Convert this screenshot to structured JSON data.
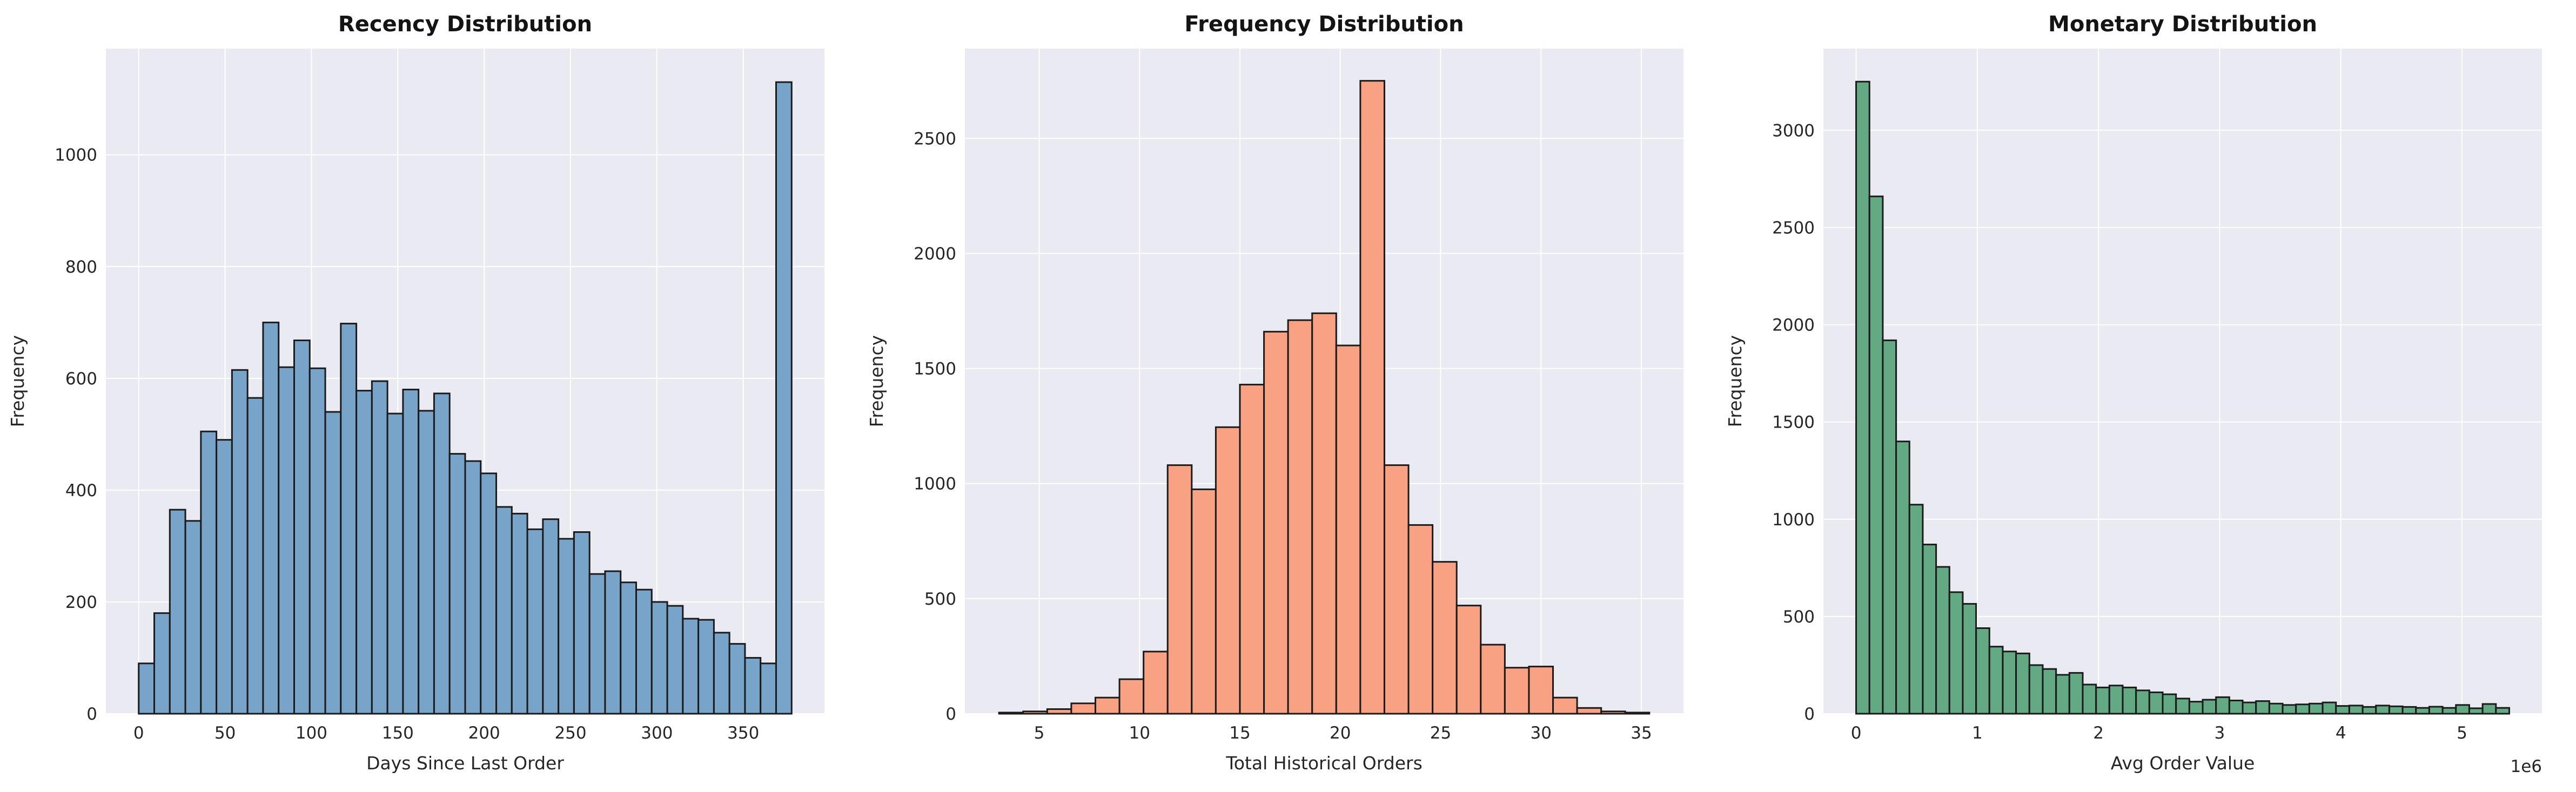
{
  "figure": {
    "background": "#ffffff",
    "axes_background": "#eaeaf2",
    "grid_color": "#ffffff",
    "tick_color": "#262626",
    "title_color": "#141414",
    "bar_edge_color": "#1b1b1b"
  },
  "chart_data": [
    {
      "type": "bar",
      "variant": "histogram",
      "title": "Recency Distribution",
      "xlabel": "Days Since Last Order",
      "ylabel": "Frequency",
      "bar_color": "#79a4ca",
      "bin_start": 0,
      "bin_width": 9,
      "values": [
        90,
        180,
        365,
        345,
        505,
        490,
        615,
        565,
        700,
        620,
        668,
        618,
        540,
        698,
        578,
        595,
        537,
        580,
        542,
        573,
        465,
        452,
        430,
        370,
        358,
        330,
        348,
        313,
        325,
        250,
        255,
        235,
        222,
        200,
        193,
        170,
        168,
        145,
        125,
        100,
        90,
        1130
      ],
      "x_ticks": [
        0,
        50,
        100,
        150,
        200,
        250,
        300,
        350
      ],
      "x_tick_labels": [
        "0",
        "50",
        "100",
        "150",
        "200",
        "250",
        "300",
        "350"
      ],
      "y_ticks": [
        0,
        200,
        400,
        600,
        800,
        1000
      ],
      "y_tick_labels": [
        "0",
        "200",
        "400",
        "600",
        "800",
        "1000"
      ],
      "xlim": [
        -19,
        397
      ],
      "ylim": [
        0,
        1190
      ],
      "grid": true,
      "legend_position": "none",
      "offset_text": ""
    },
    {
      "type": "bar",
      "variant": "histogram",
      "title": "Frequency Distribution",
      "xlabel": "Total Historical Orders",
      "ylabel": "Frequency",
      "bar_color": "#f9a183",
      "bin_start": 3.0,
      "bin_width": 1.2,
      "values": [
        5,
        10,
        20,
        45,
        70,
        150,
        270,
        1080,
        975,
        1245,
        1430,
        1660,
        1710,
        1740,
        1600,
        2750,
        1080,
        820,
        660,
        470,
        300,
        200,
        205,
        70,
        25,
        10,
        5
      ],
      "x_ticks": [
        5,
        10,
        15,
        20,
        25,
        30,
        35
      ],
      "x_tick_labels": [
        "5",
        "10",
        "15",
        "20",
        "25",
        "30",
        "35"
      ],
      "y_ticks": [
        0,
        500,
        1000,
        1500,
        2000,
        2500
      ],
      "y_tick_labels": [
        "0",
        "500",
        "1000",
        "1500",
        "2000",
        "2500"
      ],
      "xlim": [
        1.3,
        37.1
      ],
      "ylim": [
        0,
        2890
      ],
      "grid": true,
      "legend_position": "none",
      "offset_text": ""
    },
    {
      "type": "bar",
      "variant": "histogram",
      "title": "Monetary Distribution",
      "xlabel": "Avg Order Value",
      "ylabel": "Frequency",
      "bar_color": "#63a984",
      "bin_start": 0,
      "bin_width": 110000,
      "values": [
        3250,
        2660,
        1920,
        1400,
        1075,
        870,
        755,
        625,
        565,
        440,
        345,
        320,
        310,
        250,
        230,
        200,
        210,
        150,
        135,
        145,
        135,
        120,
        110,
        100,
        78,
        62,
        72,
        85,
        68,
        58,
        65,
        52,
        45,
        48,
        52,
        58,
        40,
        42,
        35,
        42,
        38,
        35,
        30,
        36,
        30,
        45,
        28,
        50,
        30
      ],
      "x_ticks": [
        0,
        1000000,
        2000000,
        3000000,
        4000000,
        5000000
      ],
      "x_tick_labels": [
        "0",
        "1",
        "2",
        "3",
        "4",
        "5"
      ],
      "y_ticks": [
        0,
        500,
        1000,
        1500,
        2000,
        2500,
        3000
      ],
      "y_tick_labels": [
        "0",
        "500",
        "1000",
        "1500",
        "2000",
        "2500",
        "3000"
      ],
      "xlim": [
        -270000,
        5660000
      ],
      "ylim": [
        0,
        3420
      ],
      "grid": true,
      "legend_position": "none",
      "offset_text": "1e6"
    }
  ]
}
